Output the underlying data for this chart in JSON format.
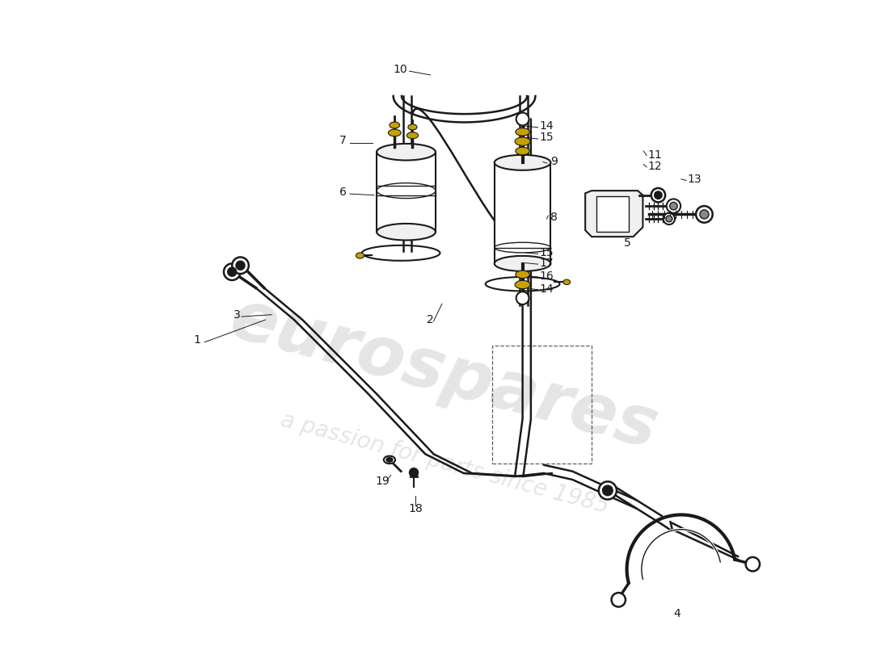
{
  "bg_color": "#ffffff",
  "line_color": "#1a1a1a",
  "gold_color": "#c8a000",
  "gray_color": "#888888",
  "light_gray": "#f0f0f0",
  "watermark1": "eurospares",
  "watermark2": "a passion for parts since 1985"
}
